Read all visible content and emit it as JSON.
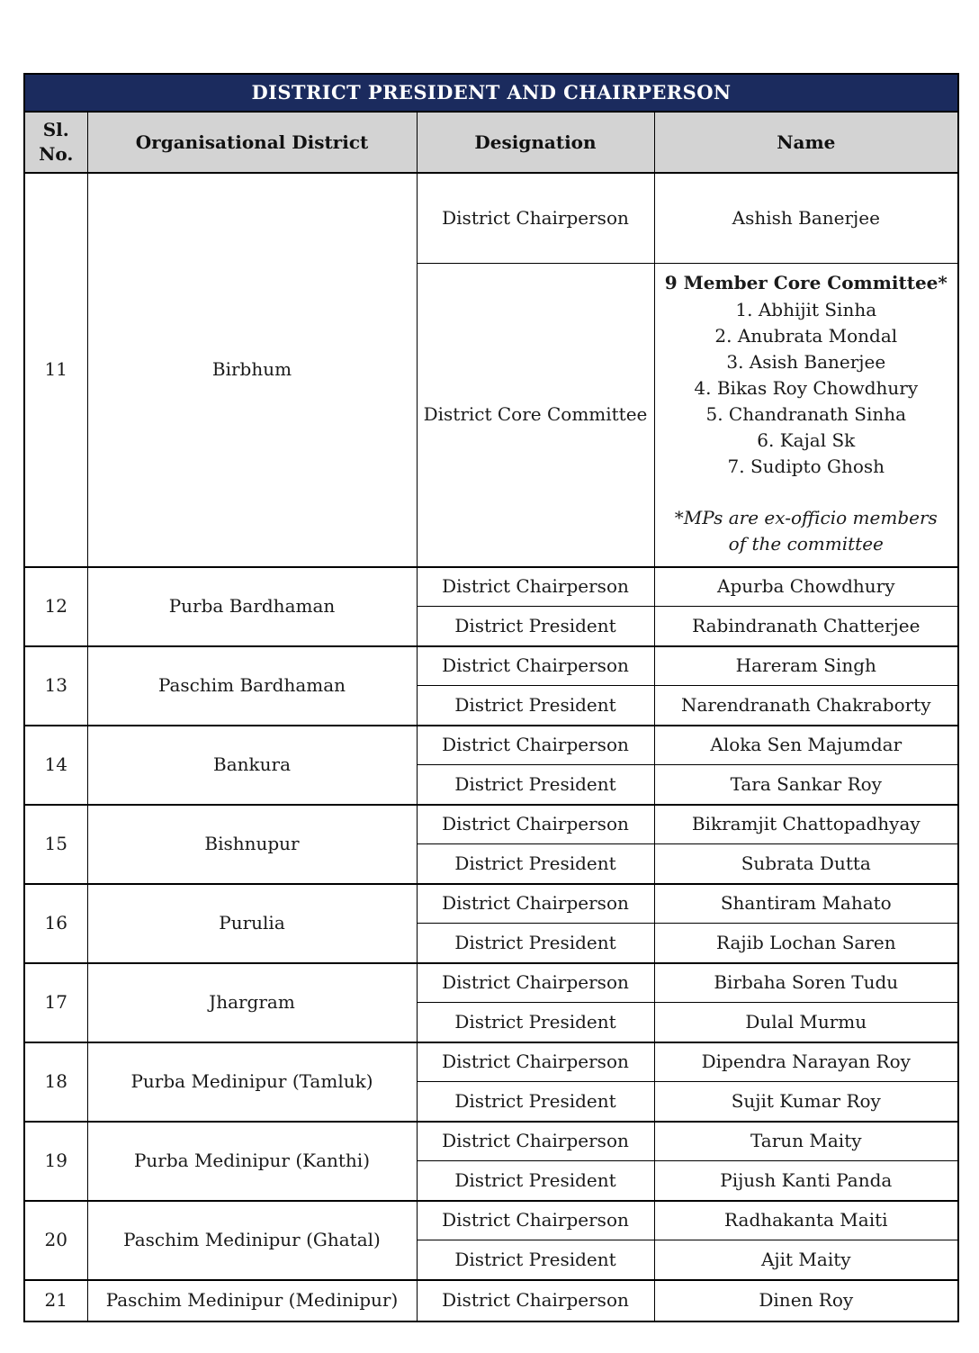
{
  "title": "DISTRICT PRESIDENT AND CHAIRPERSON",
  "columns": {
    "sl_no": "Sl. No.",
    "district": "Organisational District",
    "designation": "Designation",
    "name": "Name"
  },
  "colors": {
    "title_bg": "#1b2b5e",
    "title_text": "#ffffff",
    "header_bg": "#d3d3d3",
    "border": "#000000"
  },
  "rows": [
    {
      "sl_no": "11",
      "district": "Birbhum",
      "entries": [
        {
          "designation": "District Chairperson",
          "name": "Ashish Banerjee"
        },
        {
          "designation": "District Core Committee",
          "committee": {
            "heading": "9 Member Core Committee*",
            "members": [
              "1. Abhijit Sinha",
              "2. Anubrata Mondal",
              "3. Asish Banerjee",
              "4. Bikas Roy Chowdhury",
              "5. Chandranath Sinha",
              "6. Kajal Sk",
              "7. Sudipto Ghosh"
            ],
            "note": "*MPs are ex-officio members of the committee"
          }
        }
      ]
    },
    {
      "sl_no": "12",
      "district": "Purba Bardhaman",
      "entries": [
        {
          "designation": "District Chairperson",
          "name": "Apurba Chowdhury"
        },
        {
          "designation": "District President",
          "name": "Rabindranath Chatterjee"
        }
      ]
    },
    {
      "sl_no": "13",
      "district": "Paschim Bardhaman",
      "entries": [
        {
          "designation": "District Chairperson",
          "name": "Hareram Singh"
        },
        {
          "designation": "District President",
          "name": "Narendranath Chakraborty"
        }
      ]
    },
    {
      "sl_no": "14",
      "district": "Bankura",
      "entries": [
        {
          "designation": "District Chairperson",
          "name": "Aloka Sen Majumdar"
        },
        {
          "designation": "District President",
          "name": "Tara Sankar Roy"
        }
      ]
    },
    {
      "sl_no": "15",
      "district": "Bishnupur",
      "entries": [
        {
          "designation": "District Chairperson",
          "name": "Bikramjit Chattopadhyay"
        },
        {
          "designation": "District President",
          "name": "Subrata Dutta"
        }
      ]
    },
    {
      "sl_no": "16",
      "district": "Purulia",
      "entries": [
        {
          "designation": "District Chairperson",
          "name": "Shantiram Mahato"
        },
        {
          "designation": "District President",
          "name": "Rajib Lochan Saren"
        }
      ]
    },
    {
      "sl_no": "17",
      "district": "Jhargram",
      "entries": [
        {
          "designation": "District Chairperson",
          "name": "Birbaha Soren Tudu"
        },
        {
          "designation": "District President",
          "name": "Dulal Murmu"
        }
      ]
    },
    {
      "sl_no": "18",
      "district": "Purba Medinipur (Tamluk)",
      "entries": [
        {
          "designation": "District Chairperson",
          "name": "Dipendra Narayan Roy"
        },
        {
          "designation": "District President",
          "name": "Sujit Kumar Roy"
        }
      ]
    },
    {
      "sl_no": "19",
      "district": "Purba Medinipur (Kanthi)",
      "entries": [
        {
          "designation": "District Chairperson",
          "name": "Tarun Maity"
        },
        {
          "designation": "District President",
          "name": "Pijush Kanti Panda"
        }
      ]
    },
    {
      "sl_no": "20",
      "district": "Paschim Medinipur (Ghatal)",
      "entries": [
        {
          "designation": "District Chairperson",
          "name": "Radhakanta Maiti"
        },
        {
          "designation": "District President",
          "name": "Ajit Maity"
        }
      ]
    },
    {
      "sl_no": "21",
      "district": "Paschim Medinipur (Medinipur)",
      "entries": [
        {
          "designation": "District Chairperson",
          "name": "Dinen Roy"
        }
      ]
    }
  ]
}
